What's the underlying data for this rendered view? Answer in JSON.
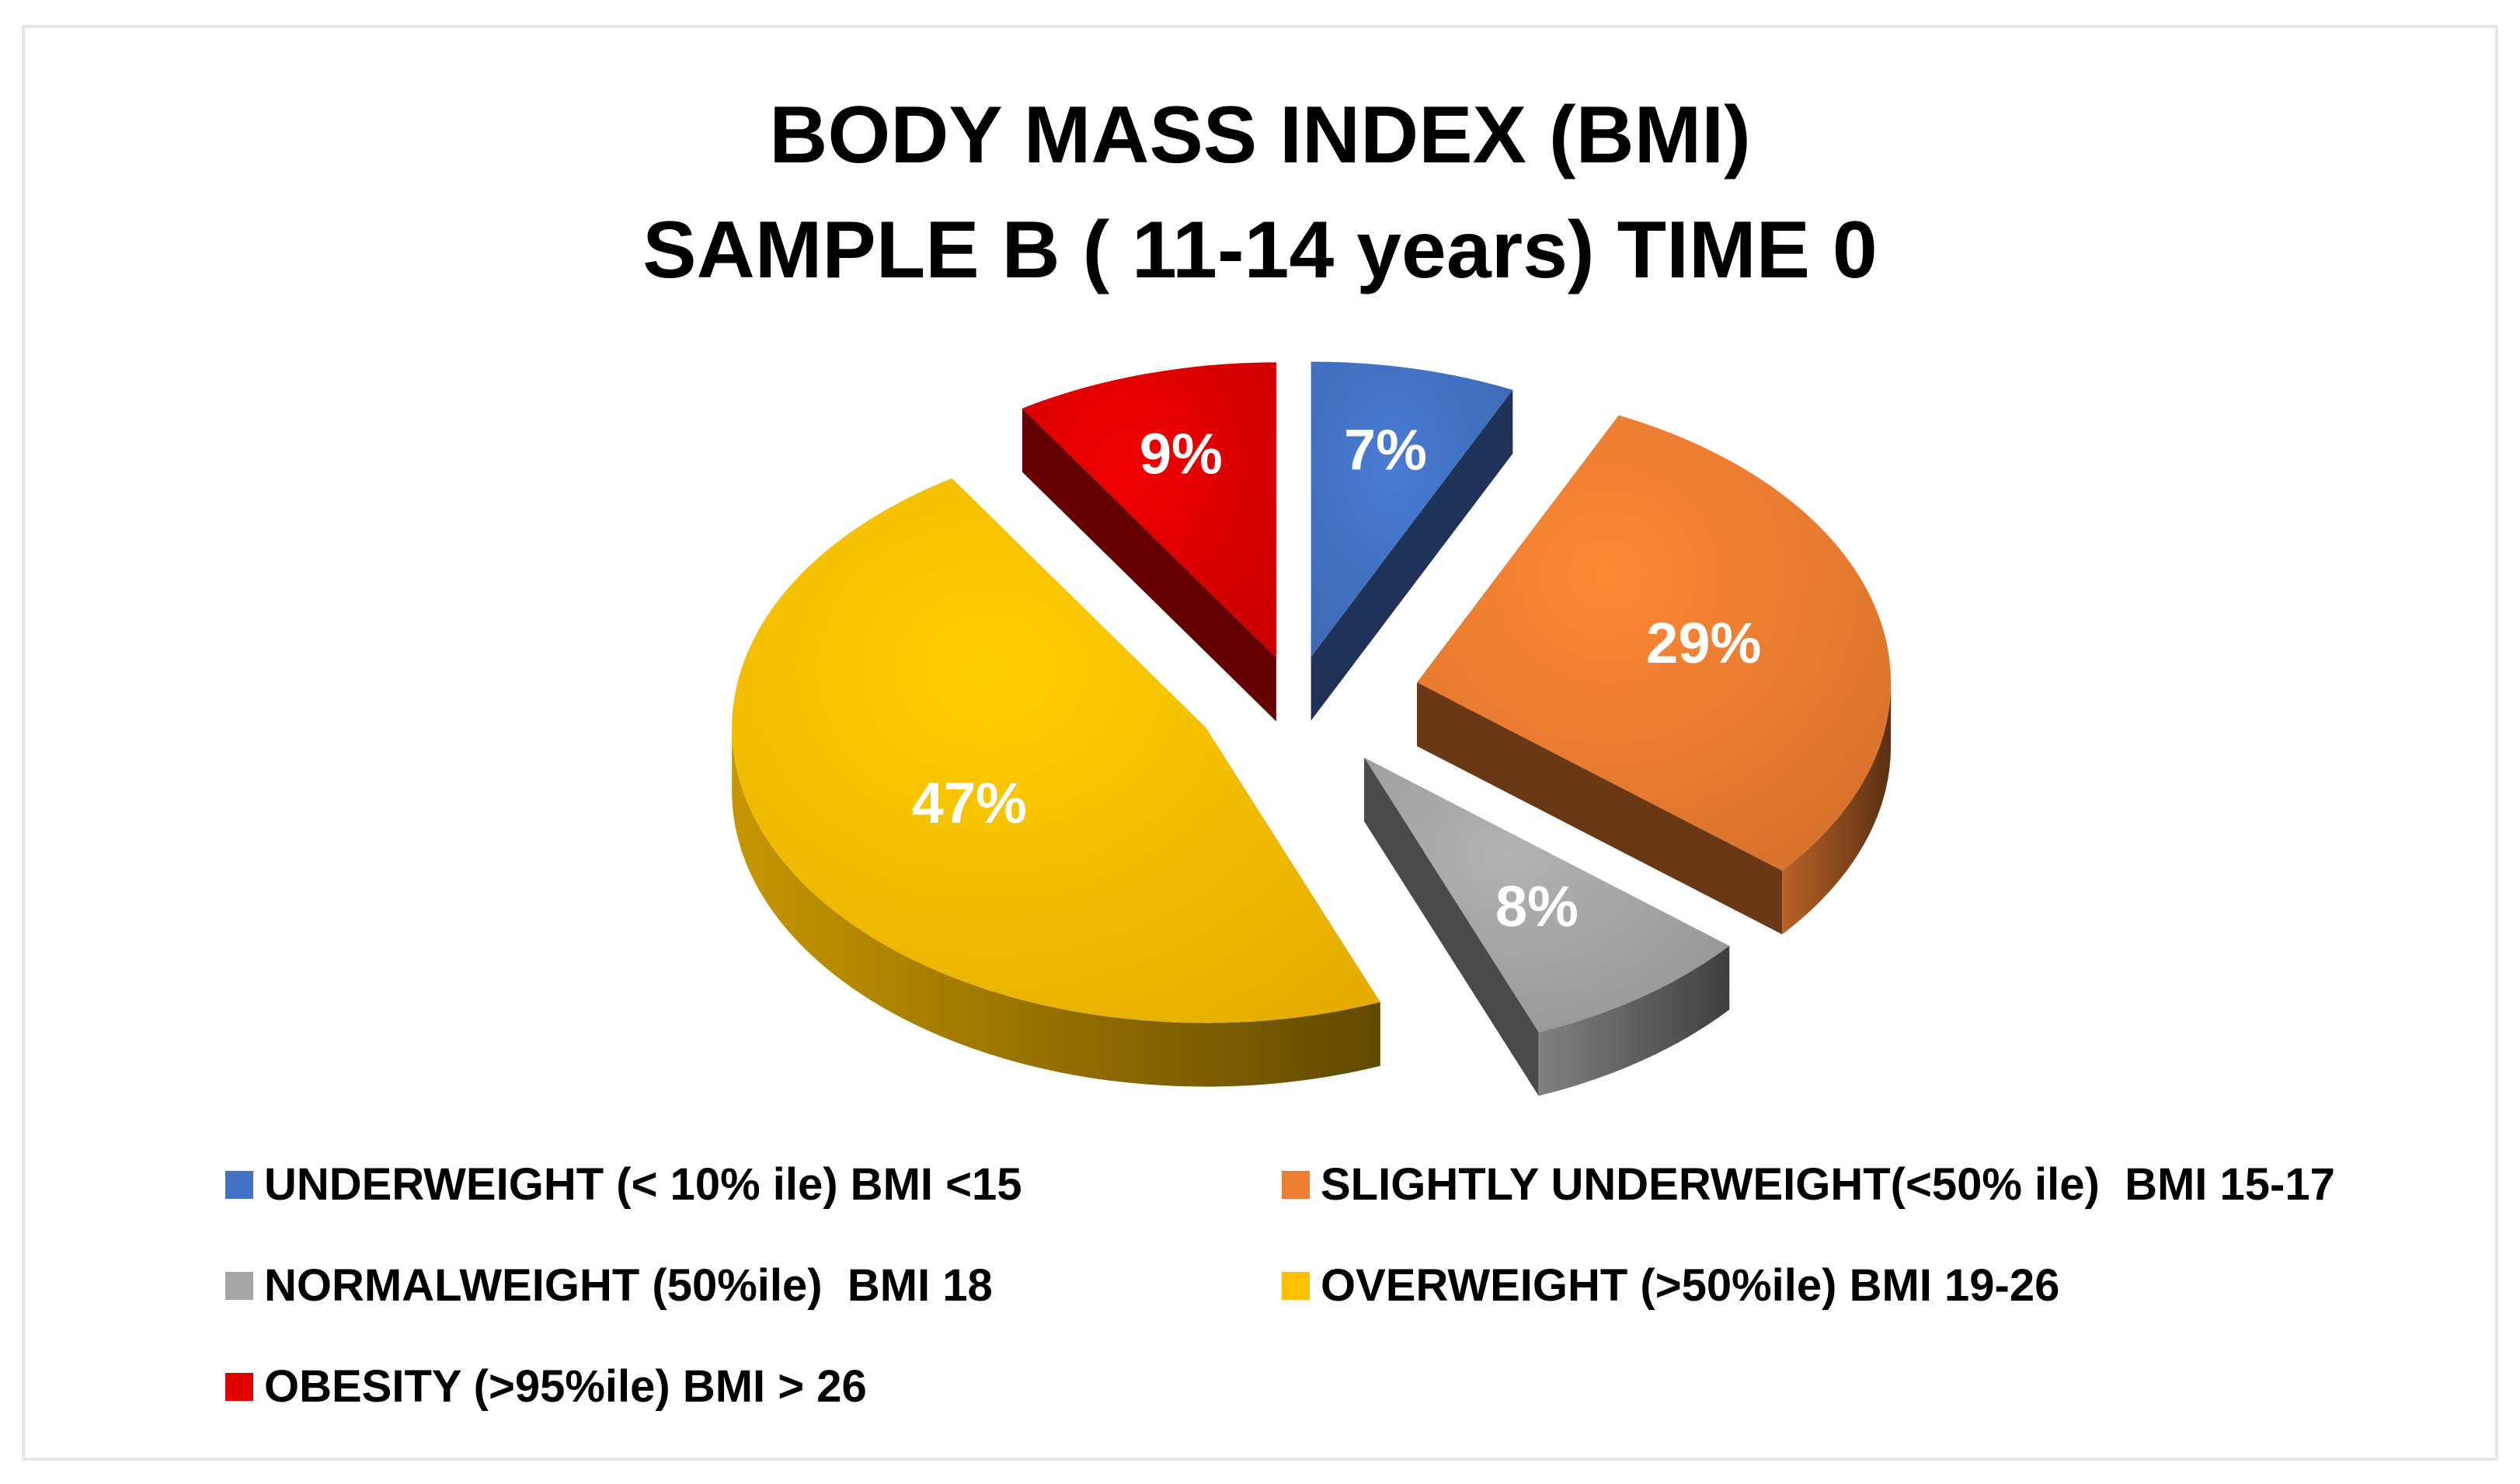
{
  "chart_data": {
    "type": "pie",
    "title_lines": [
      "BODY MASS INDEX (BMI)",
      "SAMPLE B ( 11-14 years) TIME 0"
    ],
    "style": "3d-exploded",
    "legend_placement": "bottom",
    "slices": [
      {
        "label": "UNDERWEIGHT (< 10% ile) BMI <15",
        "value": 7,
        "data_label": "7%",
        "color": "#4472C4"
      },
      {
        "label": "SLIGHTLY UNDERWEIGHT(<50% ile)  BMI 15-17",
        "value": 29,
        "data_label": "29%",
        "color": "#ED7D31"
      },
      {
        "label": "NORMALWEIGHT (50%ile)  BMI 18",
        "value": 8,
        "data_label": "8%",
        "color": "#A5A5A5"
      },
      {
        "label": "OVERWEIGHT (>50%ile) BMI 19-26",
        "value": 47,
        "data_label": "47%",
        "color": "#FFC000"
      },
      {
        "label": "OBESITY (>95%ile) BMI > 26",
        "value": 9,
        "data_label": "9%",
        "color": "#E00000"
      }
    ]
  }
}
